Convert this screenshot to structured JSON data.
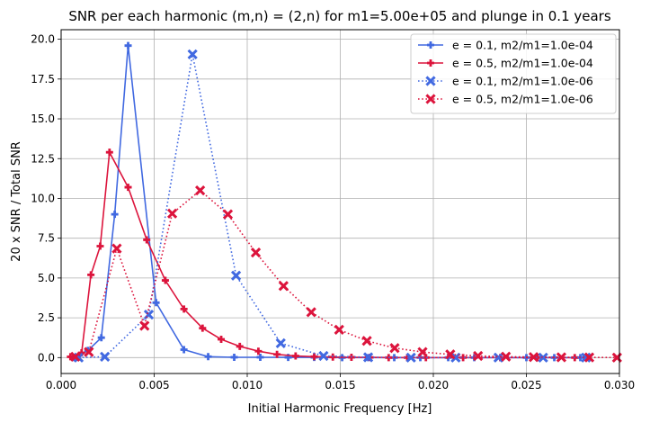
{
  "chart_data": {
    "type": "line",
    "title": "SNR per each harmonic (m,n) = (2,n) for m1=5.00e+05 and plunge in 0.1 years",
    "xlabel": "Initial Harmonic Frequency [Hz]",
    "ylabel": "20 x SNR / Total SNR",
    "xlim": [
      0,
      0.03
    ],
    "ylim": [
      -1.0,
      20.6
    ],
    "xticks": [
      0.0,
      0.005,
      0.01,
      0.015,
      0.02,
      0.025,
      0.03
    ],
    "xtick_labels": [
      "0.000",
      "0.005",
      "0.010",
      "0.015",
      "0.020",
      "0.025",
      "0.030"
    ],
    "yticks": [
      0.0,
      2.5,
      5.0,
      7.5,
      10.0,
      12.5,
      15.0,
      17.5,
      20.0
    ],
    "ytick_labels": [
      "0.0",
      "2.5",
      "5.0",
      "7.5",
      "10.0",
      "12.5",
      "15.0",
      "17.5",
      "20.0"
    ],
    "grid": true,
    "legend_position": "top-right",
    "series": [
      {
        "name": "e = 0.1, m2/m1=1.0e-04",
        "color": "#4169e1",
        "style": "solid",
        "marker": "plus",
        "x": [
          0.00072,
          0.00144,
          0.00216,
          0.00288,
          0.0036,
          0.0051,
          0.0066,
          0.0079,
          0.0093,
          0.0107,
          0.0122,
          0.0136,
          0.0151,
          0.0165,
          0.0179,
          0.0193,
          0.0208,
          0.0222,
          0.0236,
          0.025,
          0.0265,
          0.0279
        ],
        "y": [
          0.0,
          0.45,
          1.25,
          9.0,
          19.6,
          3.45,
          0.5,
          0.06,
          0.02,
          0.02,
          0.01,
          0.01,
          0.0,
          0.0,
          0.0,
          0.0,
          0.0,
          0.0,
          0.0,
          0.0,
          0.0,
          0.0
        ]
      },
      {
        "name": "e = 0.5, m2/m1=1.0e-04",
        "color": "#dc143c",
        "style": "solid",
        "marker": "plus",
        "x": [
          0.0005,
          0.0011,
          0.0016,
          0.0021,
          0.0026,
          0.0036,
          0.0046,
          0.0056,
          0.0066,
          0.0076,
          0.0086,
          0.0096,
          0.0106,
          0.0116,
          0.0126,
          0.0136,
          0.0146,
          0.0156,
          0.0166,
          0.0176,
          0.0186,
          0.0196,
          0.0216,
          0.0236,
          0.0256,
          0.0276
        ],
        "y": [
          0.05,
          0.3,
          5.2,
          7.0,
          12.9,
          10.7,
          7.4,
          4.85,
          3.05,
          1.85,
          1.15,
          0.7,
          0.4,
          0.2,
          0.1,
          0.06,
          0.03,
          0.02,
          0.01,
          0.0,
          0.0,
          0.0,
          0.0,
          0.0,
          0.0,
          0.0
        ]
      },
      {
        "name": "e = 0.1, m2/m1=1.0e-06",
        "color": "#4169e1",
        "style": "dotted",
        "marker": "x",
        "x": [
          0.00094,
          0.00235,
          0.00471,
          0.00706,
          0.0094,
          0.0118,
          0.0141,
          0.0165,
          0.0188,
          0.0212,
          0.0235,
          0.0259,
          0.0282
        ],
        "y": [
          0.0,
          0.05,
          2.7,
          19.05,
          5.15,
          0.9,
          0.1,
          0.02,
          0.0,
          0.0,
          0.0,
          0.0,
          0.0
        ]
      },
      {
        "name": "e = 0.5, m2/m1=1.0e-06",
        "color": "#dc143c",
        "style": "dotted",
        "marker": "x",
        "x": [
          0.00076,
          0.00149,
          0.00299,
          0.00448,
          0.00597,
          0.00747,
          0.00896,
          0.01046,
          0.01195,
          0.01344,
          0.01494,
          0.01643,
          0.01792,
          0.01942,
          0.02091,
          0.0224,
          0.0239,
          0.02539,
          0.02688,
          0.02838,
          0.02987
        ],
        "y": [
          0.05,
          0.35,
          6.85,
          2.0,
          9.05,
          10.5,
          9.0,
          6.6,
          4.5,
          2.85,
          1.75,
          1.05,
          0.6,
          0.35,
          0.2,
          0.1,
          0.06,
          0.03,
          0.02,
          0.01,
          0.0
        ]
      }
    ]
  }
}
